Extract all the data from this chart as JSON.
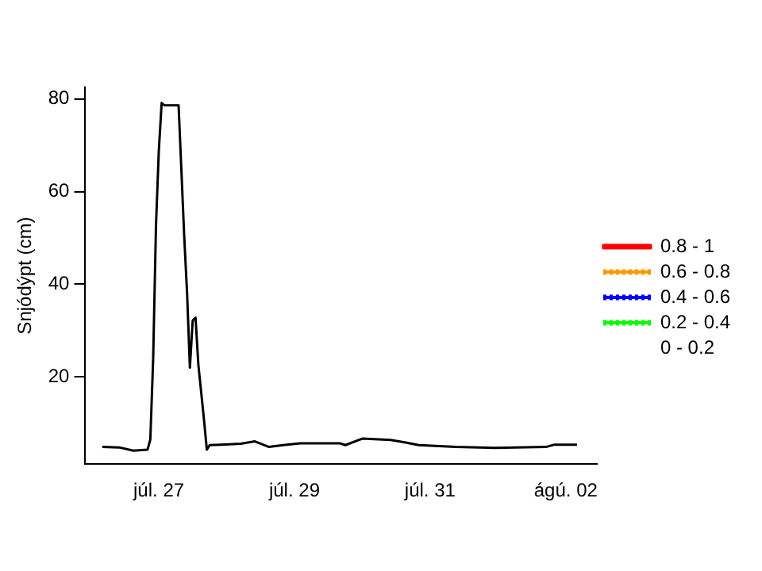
{
  "chart_data": {
    "type": "line",
    "ylabel": "Snjódýpt (cm)",
    "x": [
      "--07-26T04:00",
      "--07-26T10:00",
      "--07-26T15:00",
      "--07-26T20:00",
      "--07-26T21:00",
      "--07-26T22:00",
      "--07-26T23:00",
      "--07-27T00:00",
      "--07-27T01:00",
      "--07-27T02:00",
      "--07-27T07:00",
      "--07-27T08:00",
      "--07-27T09:00",
      "--07-27T10:00",
      "--07-27T11:00",
      "--07-27T12:00",
      "--07-27T13:00",
      "--07-27T14:00",
      "--07-27T15:00",
      "--07-27T16:00",
      "--07-27T17:00",
      "--07-27T18:00",
      "--07-27T22:00",
      "--07-28T05:00",
      "--07-28T10:00",
      "--07-28T15:00",
      "--07-28T20:00",
      "--07-29T02:00",
      "--07-29T10:00",
      "--07-29T16:00",
      "--07-29T18:00",
      "--07-30T00:00",
      "--07-30T10:00",
      "--07-30T15:00",
      "--07-30T20:00",
      "--07-31T09:00",
      "--07-31T23:00",
      "--08-01T17:00",
      "--08-01T20:00",
      "--08-02T04:00"
    ],
    "series": [
      {
        "color": "#000000",
        "values": [
          4.9,
          4.8,
          4.1,
          4.3,
          6.5,
          23.8,
          52.6,
          68.7,
          79.1,
          78.6,
          78.6,
          64.5,
          50.2,
          38.2,
          22,
          32.2,
          32.8,
          22.6,
          16.7,
          10.7,
          4.3,
          5.3,
          5.4,
          5.6,
          6.1,
          4.9,
          5.3,
          5.7,
          5.7,
          5.7,
          5.3,
          6.7,
          6.4,
          5.9,
          5.3,
          4.9,
          4.7,
          4.9,
          5.4,
          5.4
        ]
      },
      {
        "name": "0.8 - 1",
        "color": "#ff0000",
        "line_style": "solid",
        "values": [
          null,
          null,
          null,
          null,
          null,
          null,
          null,
          null,
          null,
          null,
          null,
          null,
          null,
          null,
          null,
          null,
          null,
          null,
          null,
          null,
          null,
          null,
          null,
          null,
          null,
          null,
          null,
          null,
          null,
          null,
          null,
          null,
          null,
          null,
          null,
          null,
          null,
          null,
          null,
          null
        ]
      },
      {
        "name": "0.6 - 0.8",
        "color": "#ff9900",
        "line_style": "dotted",
        "values": [
          null,
          null,
          null,
          null,
          null,
          null,
          null,
          null,
          null,
          null,
          null,
          null,
          null,
          null,
          null,
          null,
          null,
          null,
          null,
          null,
          null,
          null,
          null,
          null,
          null,
          null,
          null,
          null,
          null,
          null,
          null,
          null,
          null,
          null,
          null,
          null,
          null,
          null,
          null,
          null
        ]
      },
      {
        "name": "0.4 - 0.6",
        "color": "#0000ff",
        "line_style": "dotted",
        "values": [
          null,
          null,
          null,
          null,
          null,
          null,
          null,
          null,
          null,
          null,
          null,
          null,
          null,
          null,
          null,
          null,
          null,
          null,
          null,
          null,
          null,
          null,
          null,
          null,
          null,
          null,
          null,
          null,
          null,
          null,
          null,
          null,
          null,
          null,
          null,
          null,
          null,
          null,
          null,
          null
        ]
      },
      {
        "name": "0.2 - 0.4",
        "color": "#00ff00",
        "line_style": "dotted",
        "values": [
          null,
          null,
          null,
          null,
          null,
          null,
          null,
          null,
          null,
          null,
          null,
          null,
          null,
          null,
          null,
          null,
          null,
          null,
          null,
          null,
          null,
          null,
          null,
          null,
          null,
          null,
          null,
          null,
          null,
          null,
          null,
          null,
          null,
          null,
          null,
          null,
          null,
          null,
          null,
          null
        ]
      },
      {
        "name": "0 - 0.2",
        "line_style": "solid",
        "values": [
          null,
          null,
          null,
          null,
          null,
          null,
          null,
          null,
          null,
          null,
          null,
          null,
          null,
          null,
          null,
          null,
          null,
          null,
          null,
          null,
          null,
          null,
          null,
          null,
          null,
          null,
          null,
          null,
          null,
          null,
          null,
          null,
          null,
          null,
          null,
          null,
          null,
          null,
          null,
          null
        ]
      }
    ],
    "xlim": [
      "--07-25T22:00",
      "--08-02T11:00"
    ],
    "xticks": [
      {
        "value": "--07-27",
        "label": "júl. 27"
      },
      {
        "value": "--07-29",
        "label": "júl. 29"
      },
      {
        "value": "--07-31",
        "label": "júl. 31"
      },
      {
        "value": "--08-02",
        "label": "ágú. 02"
      }
    ],
    "ylim": [
      1.2,
      82.5
    ],
    "yticks": [
      20,
      40,
      60,
      80
    ],
    "grid": false,
    "legend": "right",
    "marker": "none",
    "line_style": "solid"
  }
}
